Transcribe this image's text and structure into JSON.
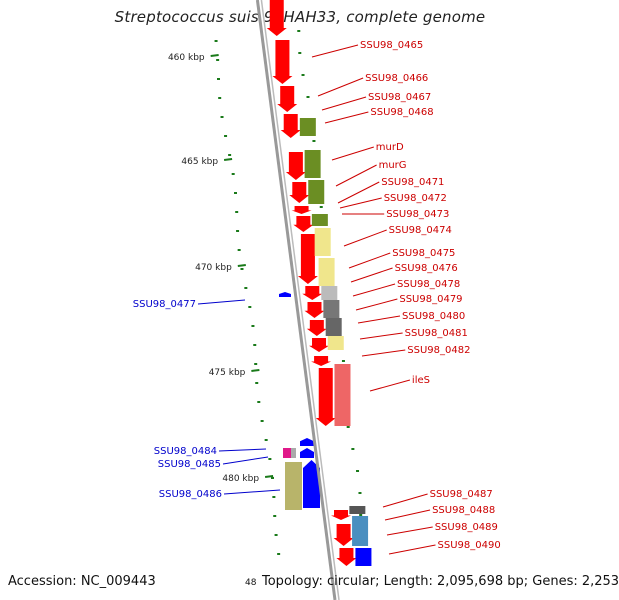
{
  "title": "Streptococcus suis 98HAH33, complete genome",
  "footer": {
    "accession": "Accession: NC_009443",
    "partial_tick": "48",
    "stats": "Topology: circular; Length: 2,095,698 bp; Genes: 2,253"
  },
  "colors": {
    "cds_forward": "#ff0000",
    "cds_reverse": "#0000ff",
    "label_forward": "#cc0000",
    "label_reverse": "#0000cc",
    "backbone": "#999999",
    "gc_dots": "#1a7a1a"
  },
  "ticks": [
    {
      "label": "460 kbp"
    },
    {
      "label": "465 kbp"
    },
    {
      "label": "470 kbp"
    },
    {
      "label": "475 kbp"
    },
    {
      "label": "480 kbp"
    }
  ],
  "genes_forward": [
    {
      "name": "SSU98_0465"
    },
    {
      "name": "SSU98_0466"
    },
    {
      "name": "SSU98_0467"
    },
    {
      "name": "SSU98_0468"
    },
    {
      "name": "murD"
    },
    {
      "name": "murG"
    },
    {
      "name": "SSU98_0471"
    },
    {
      "name": "SSU98_0472"
    },
    {
      "name": "SSU98_0473"
    },
    {
      "name": "SSU98_0474"
    },
    {
      "name": "SSU98_0475"
    },
    {
      "name": "SSU98_0476"
    },
    {
      "name": "SSU98_0478"
    },
    {
      "name": "SSU98_0479"
    },
    {
      "name": "SSU98_0480"
    },
    {
      "name": "SSU98_0481"
    },
    {
      "name": "SSU98_0482"
    },
    {
      "name": "ileS"
    },
    {
      "name": "SSU98_0487"
    },
    {
      "name": "SSU98_0488"
    },
    {
      "name": "SSU98_0489"
    },
    {
      "name": "SSU98_0490"
    }
  ],
  "genes_reverse": [
    {
      "name": "SSU98_0477"
    },
    {
      "name": "SSU98_0484"
    },
    {
      "name": "SSU98_0485"
    },
    {
      "name": "SSU98_0486"
    }
  ]
}
